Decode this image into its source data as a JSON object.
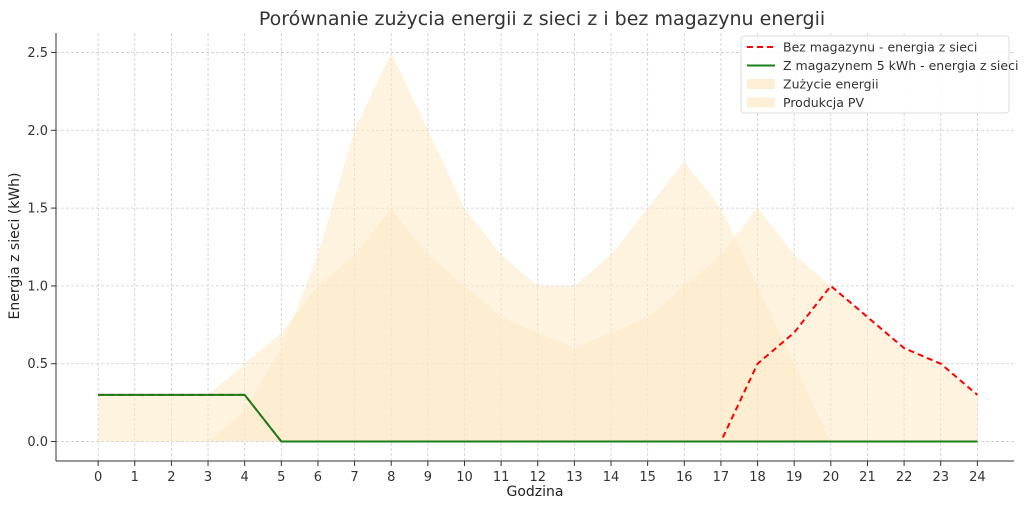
{
  "chart_data": {
    "type": "line",
    "title": "Porównanie zużycia energii z sieci z i bez magazynu energii",
    "xlabel": "Godzina",
    "ylabel": "Energia z sieci (kWh)",
    "x": [
      0,
      1,
      2,
      3,
      4,
      5,
      6,
      7,
      8,
      9,
      10,
      11,
      12,
      13,
      14,
      15,
      16,
      17,
      18,
      19,
      20,
      21,
      22,
      23,
      24
    ],
    "x_tick_labels": [
      "0",
      "1",
      "2",
      "3",
      "4",
      "5",
      "6",
      "7",
      "8",
      "9",
      "10",
      "11",
      "12",
      "13",
      "14",
      "15",
      "16",
      "17",
      "18",
      "19",
      "20",
      "21",
      "22",
      "23",
      "24"
    ],
    "y_ticks": [
      0.0,
      0.5,
      1.0,
      1.5,
      2.0,
      2.5
    ],
    "y_tick_labels": [
      "0.0",
      "0.5",
      "1.0",
      "1.5",
      "2.0",
      "2.5"
    ],
    "xlim": [
      -1.15,
      25.0
    ],
    "ylim": [
      -0.125,
      2.625
    ],
    "grid": true,
    "legend_position": "top-right",
    "series": [
      {
        "name": "Bez magazynu - energia z sieci",
        "kind": "line",
        "style": "dashed",
        "color": "#ff0000",
        "values": [
          0.3,
          0.3,
          0.3,
          0.3,
          0.3,
          0,
          0,
          0,
          0,
          0,
          0,
          0,
          0,
          0,
          0,
          0,
          0,
          0,
          0.5,
          0.7,
          1.0,
          0.8,
          0.6,
          0.5,
          0.3
        ]
      },
      {
        "name": "Z magazynem 5 kWh - energia z sieci",
        "kind": "line",
        "style": "solid",
        "color": "#1a7f1a",
        "values": [
          0.3,
          0.3,
          0.3,
          0.3,
          0.3,
          0,
          0,
          0,
          0,
          0,
          0,
          0,
          0,
          0,
          0,
          0,
          0,
          0,
          0,
          0,
          0,
          0,
          0,
          0,
          0
        ]
      },
      {
        "name": "Zużycie energii",
        "kind": "area",
        "color": "#fde9c4",
        "values": [
          0.3,
          0.3,
          0.3,
          0.3,
          0.5,
          0.7,
          1.0,
          1.2,
          1.5,
          1.2,
          1.0,
          0.8,
          0.7,
          0.6,
          0.7,
          0.8,
          1.0,
          1.2,
          1.5,
          1.2,
          1.0,
          0.8,
          0.6,
          0.5,
          0.3
        ]
      },
      {
        "name": "Produkcja PV",
        "kind": "area",
        "color": "#fde9c4",
        "values": [
          0,
          0,
          0,
          0,
          0.2,
          0.6,
          1.2,
          2.0,
          2.5,
          2.0,
          1.5,
          1.2,
          1.0,
          1.0,
          1.2,
          1.5,
          1.8,
          1.5,
          1.0,
          0.5,
          0,
          0,
          0,
          0,
          0
        ]
      }
    ]
  }
}
